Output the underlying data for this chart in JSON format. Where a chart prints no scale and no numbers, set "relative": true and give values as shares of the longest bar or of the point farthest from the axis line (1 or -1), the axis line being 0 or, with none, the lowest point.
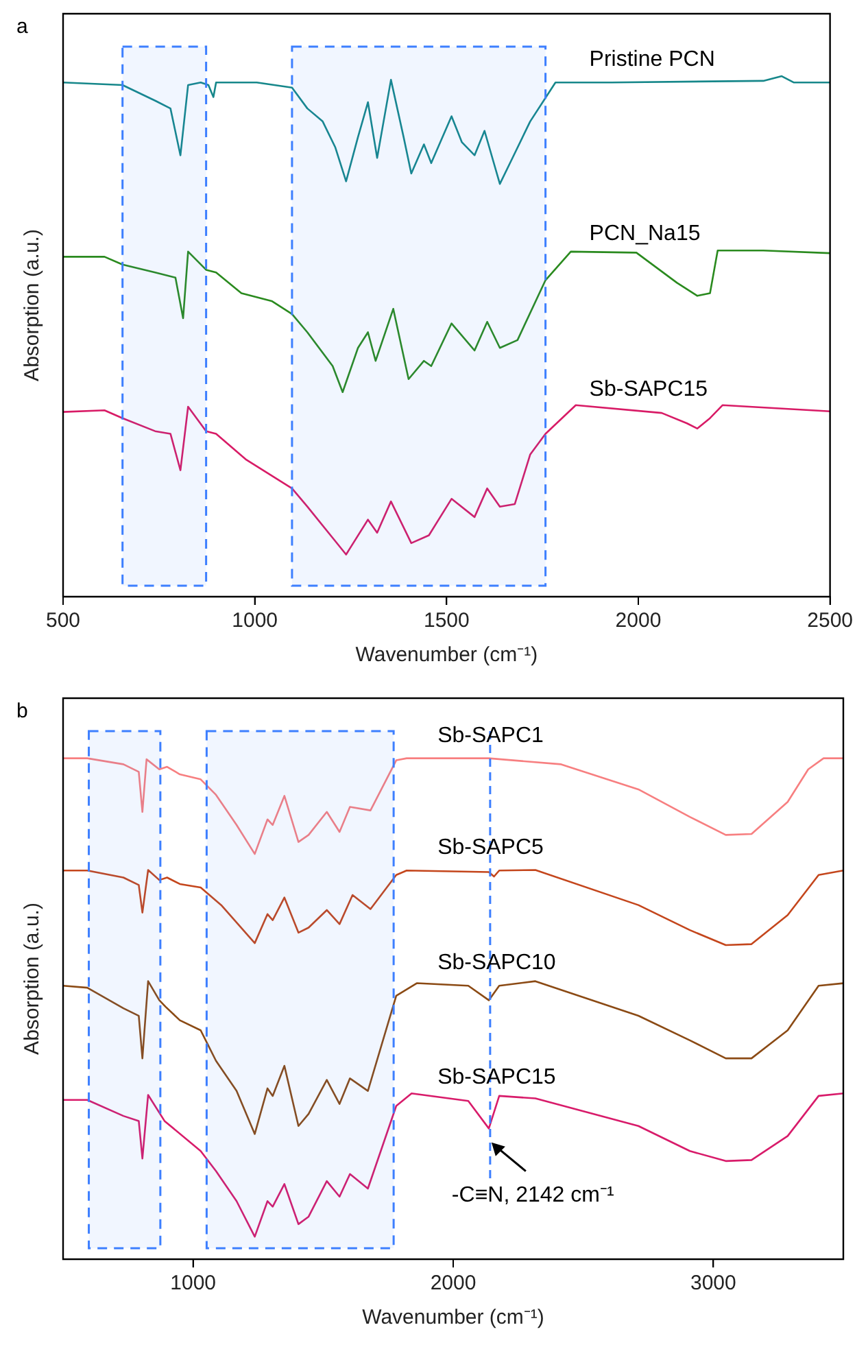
{
  "chart_data": [
    {
      "type": "line",
      "title": "a",
      "xlabel": "Wavenumber (cm⁻¹)",
      "ylabel": "Absorption (a.u.)",
      "relative": true,
      "xlim": [
        500,
        2500
      ],
      "xticks": [
        500,
        1000,
        1500,
        2000,
        2500
      ],
      "series": [
        {
          "name": "Pristine PCN",
          "color": "#16878a",
          "x": [
            500,
            655,
            740,
            780,
            806,
            826,
            859,
            879,
            892,
            899,
            1005,
            1097,
            1137,
            1177,
            1210,
            1238,
            1269,
            1295,
            1319,
            1355,
            1388,
            1408,
            1441,
            1460,
            1513,
            1540,
            1573,
            1599,
            1639,
            1672,
            1718,
            1784,
            1929,
            2326,
            2374,
            2405,
            2500
          ],
          "values": [
            0.988,
            0.983,
            0.953,
            0.938,
            0.848,
            0.983,
            0.988,
            0.983,
            0.96,
            0.988,
            0.988,
            0.978,
            0.938,
            0.913,
            0.863,
            0.798,
            0.883,
            0.95,
            0.843,
            0.993,
            0.883,
            0.813,
            0.869,
            0.833,
            0.923,
            0.873,
            0.848,
            0.895,
            0.793,
            0.843,
            0.913,
            0.988,
            0.988,
            0.991,
            1.0,
            0.988,
            0.988
          ]
        },
        {
          "name": "PCN_Na15",
          "color": "#2a8a1e",
          "x": [
            500,
            608,
            655,
            740,
            793,
            813,
            826,
            873,
            899,
            965,
            1044,
            1097,
            1137,
            1203,
            1229,
            1269,
            1295,
            1315,
            1361,
            1401,
            1441,
            1460,
            1513,
            1573,
            1606,
            1639,
            1685,
            1758,
            1824,
            1995,
            2101,
            2154,
            2187,
            2207,
            2326,
            2500
          ],
          "values": [
            0.653,
            0.653,
            0.638,
            0.623,
            0.613,
            0.535,
            0.663,
            0.628,
            0.623,
            0.583,
            0.568,
            0.543,
            0.508,
            0.443,
            0.393,
            0.478,
            0.508,
            0.453,
            0.553,
            0.418,
            0.453,
            0.443,
            0.525,
            0.473,
            0.528,
            0.478,
            0.493,
            0.608,
            0.663,
            0.661,
            0.603,
            0.578,
            0.583,
            0.665,
            0.665,
            0.66
          ]
        },
        {
          "name": "Sb-SAPC15",
          "color": "#d81b66",
          "x": [
            500,
            608,
            655,
            740,
            780,
            806,
            826,
            873,
            899,
            978,
            1097,
            1137,
            1203,
            1238,
            1295,
            1319,
            1355,
            1408,
            1454,
            1513,
            1573,
            1606,
            1639,
            1678,
            1718,
            1758,
            1837,
            2061,
            2127,
            2154,
            2187,
            2220,
            2500
          ],
          "values": [
            0.355,
            0.358,
            0.343,
            0.318,
            0.313,
            0.243,
            0.365,
            0.318,
            0.313,
            0.263,
            0.208,
            0.173,
            0.113,
            0.081,
            0.148,
            0.123,
            0.183,
            0.103,
            0.118,
            0.188,
            0.153,
            0.208,
            0.173,
            0.178,
            0.273,
            0.313,
            0.368,
            0.353,
            0.333,
            0.323,
            0.343,
            0.368,
            0.356
          ]
        }
      ],
      "bands": [
        {
          "axis": "x",
          "from": 655,
          "to": 873,
          "color": "#3d7fff"
        },
        {
          "axis": "x",
          "from": 1097,
          "to": 1758,
          "color": "#3d7fff"
        }
      ]
    },
    {
      "type": "line",
      "title": "b",
      "xlabel": "Wavenumber (cm⁻¹)",
      "ylabel": "Absorption (a.u.)",
      "relative": true,
      "xlim": [
        500,
        3500
      ],
      "xticks": [
        1000,
        2000,
        3000
      ],
      "series": [
        {
          "name": "Sb-SAPC1",
          "color": "#f77f80",
          "x": [
            500,
            593,
            732,
            791,
            805,
            821,
            870,
            900,
            949,
            1029,
            1088,
            1167,
            1237,
            1286,
            1306,
            1351,
            1405,
            1444,
            1514,
            1563,
            1603,
            1682,
            1781,
            1821,
            2137,
            2415,
            2712,
            2910,
            3048,
            3147,
            3286,
            3365,
            3424,
            3500
          ],
          "values": [
            1.0,
            1.0,
            0.988,
            0.973,
            0.893,
            0.998,
            0.978,
            0.983,
            0.968,
            0.958,
            0.927,
            0.867,
            0.809,
            0.878,
            0.867,
            0.925,
            0.833,
            0.847,
            0.893,
            0.853,
            0.903,
            0.896,
            0.996,
            1.0,
            1.0,
            0.988,
            0.938,
            0.883,
            0.847,
            0.849,
            0.913,
            0.978,
            1.0,
            1.0
          ]
        },
        {
          "name": "Sb-SAPC5",
          "color": "#c4461c",
          "x": [
            500,
            593,
            732,
            791,
            805,
            827,
            870,
            900,
            949,
            1029,
            1108,
            1237,
            1286,
            1306,
            1351,
            1405,
            1444,
            1514,
            1563,
            1613,
            1682,
            1781,
            1821,
            2137,
            2157,
            2177,
            2316,
            2712,
            2910,
            3048,
            3147,
            3286,
            3405,
            3500
          ],
          "values": [
            0.776,
            0.776,
            0.762,
            0.747,
            0.692,
            0.777,
            0.757,
            0.762,
            0.749,
            0.742,
            0.707,
            0.631,
            0.689,
            0.677,
            0.722,
            0.652,
            0.662,
            0.697,
            0.669,
            0.727,
            0.699,
            0.767,
            0.776,
            0.773,
            0.764,
            0.776,
            0.777,
            0.707,
            0.657,
            0.627,
            0.629,
            0.687,
            0.767,
            0.776
          ]
        },
        {
          "name": "Sb-SAPC10",
          "color": "#8b4a14",
          "x": [
            500,
            593,
            732,
            791,
            805,
            827,
            870,
            894,
            949,
            1029,
            1088,
            1167,
            1237,
            1286,
            1306,
            1351,
            1405,
            1444,
            1514,
            1563,
            1603,
            1672,
            1781,
            1860,
            2058,
            2137,
            2177,
            2316,
            2712,
            2910,
            3048,
            3147,
            3286,
            3405,
            3500
          ],
          "values": [
            0.546,
            0.542,
            0.501,
            0.486,
            0.401,
            0.555,
            0.517,
            0.504,
            0.477,
            0.457,
            0.396,
            0.336,
            0.25,
            0.341,
            0.326,
            0.386,
            0.266,
            0.29,
            0.358,
            0.31,
            0.361,
            0.336,
            0.526,
            0.551,
            0.546,
            0.517,
            0.546,
            0.555,
            0.486,
            0.437,
            0.401,
            0.401,
            0.457,
            0.546,
            0.551
          ]
        },
        {
          "name": "Sb-SAPC15",
          "color": "#d81b6a",
          "x": [
            500,
            593,
            732,
            791,
            805,
            827,
            890,
            1029,
            1088,
            1167,
            1237,
            1286,
            1306,
            1351,
            1405,
            1444,
            1514,
            1563,
            1603,
            1672,
            1781,
            1840,
            2058,
            2137,
            2177,
            2316,
            2712,
            2910,
            3048,
            3147,
            3286,
            3405,
            3500
          ],
          "values": [
            0.318,
            0.318,
            0.286,
            0.276,
            0.201,
            0.328,
            0.276,
            0.216,
            0.176,
            0.116,
            0.045,
            0.116,
            0.105,
            0.15,
            0.07,
            0.085,
            0.156,
            0.125,
            0.17,
            0.141,
            0.306,
            0.331,
            0.316,
            0.261,
            0.326,
            0.321,
            0.266,
            0.216,
            0.196,
            0.198,
            0.246,
            0.326,
            0.331
          ]
        }
      ],
      "bands": [
        {
          "axis": "x",
          "from": 599,
          "to": 874,
          "color": "#3d7fff"
        },
        {
          "axis": "x",
          "from": 1052,
          "to": 1771,
          "color": "#3d7fff"
        }
      ],
      "ref_lines": [
        {
          "axis": "x",
          "value": 2142,
          "color": "#3d7fff",
          "line_style": "dashed"
        }
      ],
      "annotations": [
        {
          "text": "-C≡N, 2142 cm⁻¹",
          "x": 2142,
          "y": 0.236
        }
      ]
    }
  ]
}
